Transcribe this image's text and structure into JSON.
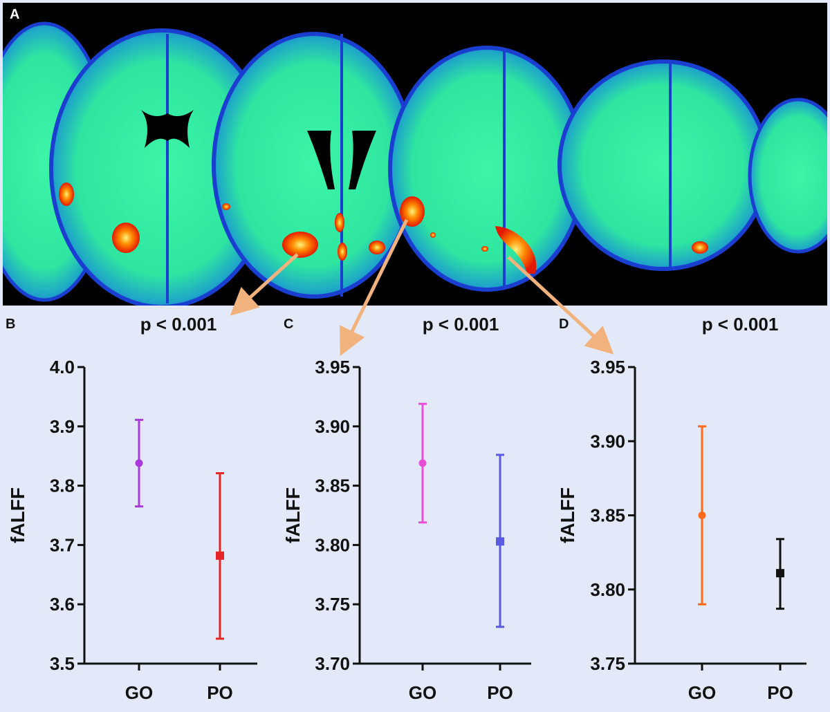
{
  "figure": {
    "panels": {
      "a": "A",
      "b": "B",
      "c": "C",
      "d": "D"
    },
    "colors": {
      "background": "#e3e9f8",
      "arrow": "#f2b27e",
      "brain_green": "#36f2a0",
      "brain_blue": "#1d5fd0",
      "activation": "#ff3a00"
    }
  },
  "chart_data": [
    {
      "panel": "B",
      "type": "scatter",
      "title": "p < 0.001",
      "ylabel": "fALFF",
      "xlabel": "",
      "categories": [
        "GO",
        "PO"
      ],
      "ylim": [
        3.5,
        4.0
      ],
      "yticks": [
        "3.5",
        "3.6",
        "3.7",
        "3.8",
        "3.9",
        "4.0"
      ],
      "grid": false,
      "series": [
        {
          "category": "GO",
          "mean": 3.838,
          "lower": 3.765,
          "upper": 3.911,
          "color": "#a93bdc",
          "marker": "circle"
        },
        {
          "category": "PO",
          "mean": 3.682,
          "lower": 3.542,
          "upper": 3.821,
          "color": "#e32626",
          "marker": "square"
        }
      ]
    },
    {
      "panel": "C",
      "type": "scatter",
      "title": "p < 0.001",
      "ylabel": "fALFF",
      "xlabel": "",
      "categories": [
        "GO",
        "PO"
      ],
      "ylim": [
        3.7,
        3.95
      ],
      "yticks": [
        "3.70",
        "3.75",
        "3.80",
        "3.85",
        "3.90",
        "3.95"
      ],
      "grid": false,
      "series": [
        {
          "category": "GO",
          "mean": 3.869,
          "lower": 3.819,
          "upper": 3.919,
          "color": "#e94fd6",
          "marker": "circle"
        },
        {
          "category": "PO",
          "mean": 3.803,
          "lower": 3.731,
          "upper": 3.876,
          "color": "#5a5be0",
          "marker": "square"
        }
      ]
    },
    {
      "panel": "D",
      "type": "scatter",
      "title": "p < 0.001",
      "ylabel": "fALFF",
      "xlabel": "",
      "categories": [
        "GO",
        "PO"
      ],
      "ylim": [
        3.75,
        3.95
      ],
      "yticks": [
        "3.75",
        "3.80",
        "3.85",
        "3.90",
        "3.95"
      ],
      "grid": false,
      "series": [
        {
          "category": "GO",
          "mean": 3.85,
          "lower": 3.79,
          "upper": 3.91,
          "color": "#ff6a1a",
          "marker": "circle"
        },
        {
          "category": "PO",
          "mean": 3.811,
          "lower": 3.787,
          "upper": 3.834,
          "color": "#111111",
          "marker": "square"
        }
      ]
    }
  ]
}
